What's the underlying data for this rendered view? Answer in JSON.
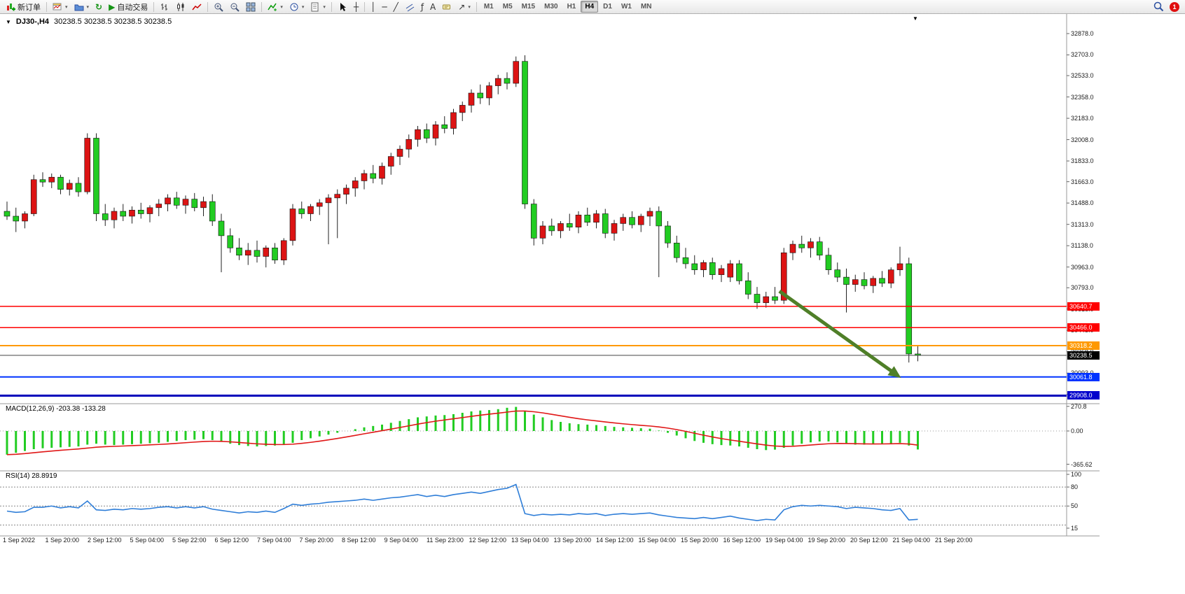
{
  "toolbar": {
    "new_order": "新订单",
    "auto_trading": "自动交易",
    "timeframes": [
      "M1",
      "M5",
      "M15",
      "M30",
      "H1",
      "H4",
      "D1",
      "W1",
      "MN"
    ],
    "active_timeframe": "H4",
    "badge": "1"
  },
  "icons": {
    "refresh": "↻",
    "autotrading_play": "▶",
    "crosshair": "┼",
    "vline": "│",
    "hline": "─",
    "trendline": "╱",
    "fibonacci": "ƒ",
    "text": "A",
    "arrows": "↗",
    "caret": "▾",
    "collapse_triangle": "▼",
    "shift_marker": "▼"
  },
  "time_axis": {
    "labels": [
      "1 Sep 2022",
      "1 Sep 20:00",
      "2 Sep 12:00",
      "5 Sep 04:00",
      "5 Sep 22:00",
      "6 Sep 12:00",
      "7 Sep 04:00",
      "7 Sep 20:00",
      "8 Sep 12:00",
      "9 Sep 04:00",
      "11 Sep 23:00",
      "12 Sep 12:00",
      "13 Sep 04:00",
      "13 Sep 20:00",
      "14 Sep 12:00",
      "15 Sep 04:00",
      "15 Sep 20:00",
      "16 Sep 12:00",
      "19 Sep 04:00",
      "19 Sep 20:00",
      "20 Sep 12:00",
      "21 Sep 04:00",
      "21 Sep 20:00"
    ]
  },
  "chart_data": [
    {
      "type": "candlestick",
      "symbol_period": "DJ30-,H4",
      "ohlc_text": "30238.5 30238.5 30238.5 30238.5",
      "ylim": [
        29842,
        33050
      ],
      "up_color": "#dc1414",
      "down_color": "#22cc22",
      "y_axis_labels": [
        "32878.0",
        "32703.0",
        "32533.0",
        "32358.0",
        "32183.0",
        "32008.0",
        "31833.0",
        "31663.0",
        "31488.0",
        "31313.0",
        "31138.0",
        "30963.0",
        "30793.0",
        "30618.0",
        "30443.0",
        "30268.0",
        "30093.0",
        "29918.0"
      ],
      "hlines": [
        {
          "price": 30640.7,
          "label": "30640.7",
          "color": "#ff0000",
          "width": 1.5
        },
        {
          "price": 30466.0,
          "label": "30466.0",
          "color": "#ff0000",
          "width": 1.5
        },
        {
          "price": 30318.2,
          "label": "30318.2",
          "color": "#ff9900",
          "width": 2
        },
        {
          "price": 30238.5,
          "label": "30238.5",
          "color": "#444444",
          "tag_bg": "#000000",
          "width": 1
        },
        {
          "price": 30061.8,
          "label": "30061.8",
          "color": "#0033ff",
          "width": 2
        },
        {
          "price": 29908.0,
          "label": "29908.0",
          "color": "#0000bb",
          "tag_bg": "#0000cc",
          "width": 3
        }
      ],
      "arrow": {
        "from_index": 86.5,
        "from_price": 30765,
        "to_index": 99.8,
        "to_price": 30070,
        "color": "#4f7f28"
      },
      "candles": [
        [
          31420,
          31500,
          31350,
          31380
        ],
        [
          31380,
          31450,
          31250,
          31340
        ],
        [
          31340,
          31420,
          31280,
          31400
        ],
        [
          31400,
          31720,
          31380,
          31680
        ],
        [
          31680,
          31740,
          31620,
          31660
        ],
        [
          31660,
          31730,
          31610,
          31700
        ],
        [
          31700,
          31720,
          31560,
          31600
        ],
        [
          31600,
          31680,
          31550,
          31650
        ],
        [
          31650,
          31700,
          31540,
          31580
        ],
        [
          31580,
          32060,
          31560,
          32020
        ],
        [
          32020,
          32060,
          31340,
          31400
        ],
        [
          31400,
          31480,
          31300,
          31350
        ],
        [
          31350,
          31450,
          31280,
          31420
        ],
        [
          31420,
          31480,
          31340,
          31380
        ],
        [
          31380,
          31460,
          31320,
          31430
        ],
        [
          31430,
          31490,
          31360,
          31400
        ],
        [
          31400,
          31470,
          31330,
          31450
        ],
        [
          31450,
          31520,
          31380,
          31480
        ],
        [
          31480,
          31560,
          31420,
          31530
        ],
        [
          31530,
          31580,
          31440,
          31470
        ],
        [
          31470,
          31550,
          31400,
          31520
        ],
        [
          31520,
          31570,
          31420,
          31450
        ],
        [
          31450,
          31540,
          31380,
          31500
        ],
        [
          31500,
          31560,
          31300,
          31340
        ],
        [
          31340,
          31400,
          30920,
          31220
        ],
        [
          31220,
          31280,
          31080,
          31120
        ],
        [
          31120,
          31200,
          31020,
          31060
        ],
        [
          31060,
          31160,
          30980,
          31100
        ],
        [
          31100,
          31180,
          31000,
          31050
        ],
        [
          31050,
          31140,
          30960,
          31120
        ],
        [
          31120,
          31160,
          30990,
          31020
        ],
        [
          31020,
          31200,
          30980,
          31180
        ],
        [
          31180,
          31480,
          31140,
          31440
        ],
        [
          31440,
          31500,
          31360,
          31400
        ],
        [
          31400,
          31480,
          31340,
          31460
        ],
        [
          31460,
          31520,
          31390,
          31490
        ],
        [
          31490,
          31560,
          31150,
          31530
        ],
        [
          31530,
          31600,
          31200,
          31560
        ],
        [
          31560,
          31640,
          31480,
          31610
        ],
        [
          31610,
          31700,
          31540,
          31670
        ],
        [
          31670,
          31760,
          31600,
          31730
        ],
        [
          31730,
          31800,
          31650,
          31690
        ],
        [
          31690,
          31820,
          31640,
          31790
        ],
        [
          31790,
          31900,
          31720,
          31870
        ],
        [
          31870,
          31960,
          31800,
          31930
        ],
        [
          31930,
          32050,
          31860,
          32010
        ],
        [
          32010,
          32120,
          31950,
          32090
        ],
        [
          32090,
          32140,
          31980,
          32020
        ],
        [
          32020,
          32160,
          31960,
          32130
        ],
        [
          32130,
          32200,
          32060,
          32100
        ],
        [
          32100,
          32260,
          32050,
          32230
        ],
        [
          32230,
          32320,
          32160,
          32290
        ],
        [
          32290,
          32420,
          32230,
          32390
        ],
        [
          32390,
          32460,
          32300,
          32350
        ],
        [
          32350,
          32480,
          32290,
          32450
        ],
        [
          32450,
          32540,
          32380,
          32510
        ],
        [
          32510,
          32560,
          32420,
          32470
        ],
        [
          32470,
          32690,
          32440,
          32650
        ],
        [
          32650,
          32700,
          31440,
          31480
        ],
        [
          31480,
          31520,
          31140,
          31200
        ],
        [
          31200,
          31340,
          31150,
          31300
        ],
        [
          31300,
          31360,
          31220,
          31260
        ],
        [
          31260,
          31340,
          31200,
          31320
        ],
        [
          31320,
          31400,
          31260,
          31290
        ],
        [
          31290,
          31420,
          31240,
          31390
        ],
        [
          31390,
          31450,
          31300,
          31330
        ],
        [
          31330,
          31430,
          31280,
          31400
        ],
        [
          31400,
          31440,
          31200,
          31240
        ],
        [
          31240,
          31350,
          31180,
          31320
        ],
        [
          31320,
          31400,
          31260,
          31370
        ],
        [
          31370,
          31420,
          31280,
          31310
        ],
        [
          31310,
          31400,
          31250,
          31380
        ],
        [
          31380,
          31450,
          31300,
          31420
        ],
        [
          31420,
          31460,
          30880,
          31300
        ],
        [
          31300,
          31340,
          31120,
          31160
        ],
        [
          31160,
          31220,
          31000,
          31040
        ],
        [
          31040,
          31120,
          30950,
          30990
        ],
        [
          30990,
          31060,
          30900,
          30940
        ],
        [
          30940,
          31020,
          30880,
          31000
        ],
        [
          31000,
          31040,
          30860,
          30900
        ],
        [
          30900,
          30980,
          30840,
          30950
        ],
        [
          30880,
          31020,
          30840,
          30990
        ],
        [
          30990,
          31020,
          30820,
          30850
        ],
        [
          30850,
          30920,
          30700,
          30740
        ],
        [
          30740,
          30800,
          30620,
          30670
        ],
        [
          30670,
          30760,
          30630,
          30720
        ],
        [
          30720,
          30800,
          30660,
          30690
        ],
        [
          30690,
          31120,
          30660,
          31080
        ],
        [
          31080,
          31180,
          31020,
          31150
        ],
        [
          31150,
          31220,
          31080,
          31120
        ],
        [
          31120,
          31200,
          31040,
          31170
        ],
        [
          31170,
          31210,
          31020,
          31060
        ],
        [
          31060,
          31120,
          30900,
          30940
        ],
        [
          30940,
          31000,
          30840,
          30880
        ],
        [
          30880,
          30950,
          30590,
          30820
        ],
        [
          30820,
          30900,
          30760,
          30860
        ],
        [
          30860,
          30920,
          30780,
          30810
        ],
        [
          30810,
          30890,
          30750,
          30870
        ],
        [
          30870,
          30930,
          30800,
          30830
        ],
        [
          30830,
          30960,
          30790,
          30940
        ],
        [
          30940,
          31130,
          30890,
          30990
        ],
        [
          30990,
          31040,
          30180,
          30250
        ],
        [
          30250,
          30320,
          30190,
          30238.5
        ]
      ]
    },
    {
      "type": "bar",
      "label": "MACD(12,26,9) -203.38 -133.28",
      "scale_labels": [
        "270.8",
        "0.00",
        "-365.62"
      ],
      "ylim": [
        -365.62,
        270.8
      ],
      "histogram_color": "#22cc22",
      "signal_color": "#e01717",
      "values": [
        -260,
        -240,
        -220,
        -200,
        -190,
        -185,
        -180,
        -175,
        -170,
        -150,
        -140,
        -150,
        -155,
        -150,
        -145,
        -140,
        -135,
        -130,
        -120,
        -110,
        -100,
        -95,
        -90,
        -100,
        -120,
        -140,
        -155,
        -165,
        -170,
        -165,
        -160,
        -150,
        -130,
        -100,
        -80,
        -60,
        -40,
        -20,
        0,
        20,
        40,
        55,
        70,
        90,
        110,
        130,
        150,
        160,
        170,
        175,
        185,
        200,
        215,
        225,
        230,
        240,
        255,
        265,
        220,
        180,
        150,
        120,
        100,
        85,
        75,
        70,
        65,
        55,
        45,
        40,
        35,
        30,
        25,
        5,
        -20,
        -50,
        -80,
        -110,
        -130,
        -145,
        -155,
        -160,
        -170,
        -185,
        -200,
        -210,
        -205,
        -185,
        -160,
        -140,
        -125,
        -115,
        -115,
        -125,
        -140,
        -150,
        -150,
        -145,
        -140,
        -135,
        -130,
        -160,
        -203.38
      ]
    },
    {
      "type": "line",
      "label": "RSI(14) 28.8919",
      "scale_labels": [
        "100",
        "80",
        "50",
        "15"
      ],
      "levels": [
        80,
        50,
        20
      ],
      "line_color": "#2f7ed8",
      "ylim": [
        0,
        100
      ],
      "values": [
        42,
        40,
        41,
        48,
        48,
        50,
        47,
        49,
        47,
        58,
        44,
        43,
        45,
        44,
        46,
        45,
        46,
        48,
        49,
        47,
        49,
        47,
        49,
        45,
        43,
        41,
        39,
        41,
        40,
        42,
        40,
        46,
        53,
        51,
        53,
        54,
        56,
        57,
        58,
        59,
        61,
        59,
        61,
        63,
        64,
        66,
        68,
        65,
        67,
        65,
        68,
        70,
        72,
        70,
        73,
        76,
        78,
        84,
        38,
        35,
        37,
        36,
        37,
        36,
        38,
        37,
        38,
        35,
        37,
        38,
        37,
        38,
        39,
        36,
        34,
        32,
        31,
        30,
        32,
        30,
        32,
        34,
        31,
        29,
        27,
        29,
        28,
        44,
        49,
        51,
        50,
        51,
        50,
        49,
        46,
        48,
        47,
        46,
        44,
        43,
        46,
        28,
        28.89
      ]
    }
  ]
}
